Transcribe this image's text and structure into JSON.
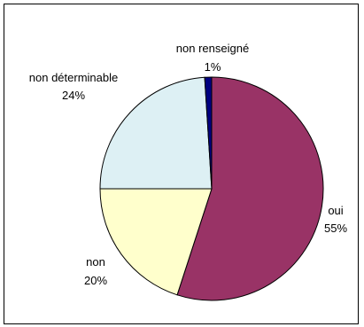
{
  "chart_data": {
    "type": "pie",
    "categories": [
      "oui",
      "non",
      "non déterminable",
      "non renseigné"
    ],
    "values": [
      55,
      20,
      24,
      1
    ],
    "labels": [
      "55%",
      "20%",
      "24%",
      "1%"
    ],
    "colors": [
      "#993366",
      "#FFFFCC",
      "#DDF0F4",
      "#000080"
    ],
    "legend": "none"
  }
}
